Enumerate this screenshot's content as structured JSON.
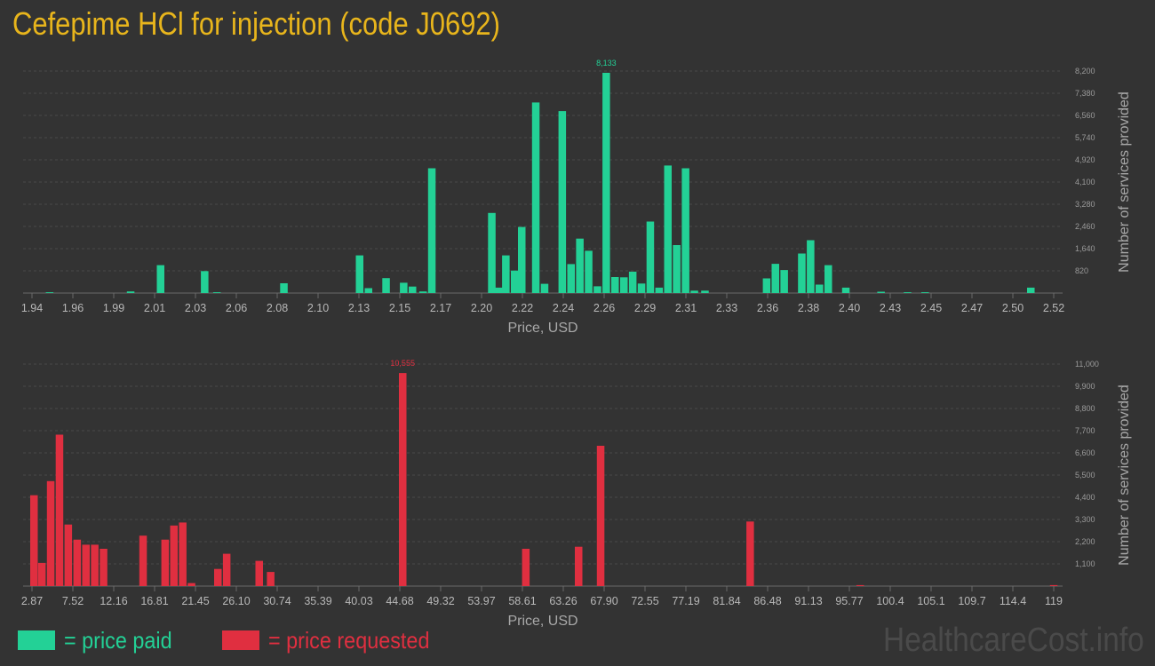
{
  "page_title": "Cefepime HCl for injection (code J0692)",
  "watermark": "HealthcareCost.info",
  "colors": {
    "paid": "#23d196",
    "requested": "#e02f40",
    "title": "#e8b51c",
    "background": "#333333"
  },
  "legend": [
    {
      "label": "= price paid",
      "color": "#23d196"
    },
    {
      "label": "= price requested",
      "color": "#e02f40"
    }
  ],
  "chart_data": [
    {
      "type": "bar",
      "name": "price-paid",
      "xlabel": "Price, USD",
      "ylabel": "Number of services provided",
      "xlim": [
        1.94,
        2.52
      ],
      "ylim": [
        0,
        8200
      ],
      "x_ticks": [
        "1.94",
        "1.96",
        "1.99",
        "2.01",
        "2.03",
        "2.06",
        "2.08",
        "2.10",
        "2.13",
        "2.15",
        "2.17",
        "2.20",
        "2.22",
        "2.24",
        "2.26",
        "2.29",
        "2.31",
        "2.33",
        "2.36",
        "2.38",
        "2.40",
        "2.43",
        "2.45",
        "2.47",
        "2.50",
        "2.52"
      ],
      "y_ticks": [
        "820",
        "1,640",
        "2,460",
        "3,280",
        "4,100",
        "4,920",
        "5,740",
        "6,560",
        "7,380",
        "8,200"
      ],
      "peak_label": "8,133",
      "x": [
        1.95,
        1.996,
        2.013,
        2.038,
        2.045,
        2.083,
        2.126,
        2.131,
        2.141,
        2.151,
        2.156,
        2.162,
        2.167,
        2.201,
        2.205,
        2.209,
        2.214,
        2.218,
        2.226,
        2.231,
        2.241,
        2.246,
        2.251,
        2.256,
        2.261,
        2.266,
        2.271,
        2.276,
        2.281,
        2.286,
        2.291,
        2.296,
        2.301,
        2.306,
        2.311,
        2.316,
        2.322,
        2.357,
        2.362,
        2.367,
        2.377,
        2.382,
        2.387,
        2.392,
        2.402,
        2.422,
        2.437,
        2.447,
        2.507
      ],
      "values": [
        30,
        60,
        1030,
        810,
        30,
        360,
        1390,
        180,
        550,
        380,
        240,
        60,
        4610,
        2960,
        200,
        1390,
        830,
        2440,
        7040,
        340,
        6720,
        1070,
        2010,
        1560,
        250,
        8133,
        590,
        580,
        790,
        350,
        2640,
        200,
        4710,
        1770,
        4610,
        90,
        90,
        540,
        1080,
        850,
        1460,
        1950,
        310,
        1030,
        200,
        50,
        30,
        30,
        200
      ]
    },
    {
      "type": "bar",
      "name": "price-requested",
      "xlabel": "Price, USD",
      "ylabel": "Number of services provided",
      "xlim": [
        2.87,
        119
      ],
      "ylim": [
        0,
        11000
      ],
      "x_ticks": [
        "2.87",
        "7.52",
        "12.16",
        "16.81",
        "21.45",
        "26.10",
        "30.74",
        "35.39",
        "40.03",
        "44.68",
        "49.32",
        "53.97",
        "58.61",
        "63.26",
        "67.90",
        "72.55",
        "77.19",
        "81.84",
        "86.48",
        "91.13",
        "95.77",
        "100.4",
        "105.1",
        "109.7",
        "114.4",
        "119"
      ],
      "y_ticks": [
        "1,100",
        "2,200",
        "3,300",
        "4,400",
        "5,500",
        "6,600",
        "7,700",
        "8,800",
        "9,900",
        "11,000"
      ],
      "peak_label": "10,555",
      "x": [
        3.1,
        4.0,
        5.0,
        6.0,
        7.0,
        8.0,
        9.0,
        10.0,
        11.0,
        12.0,
        15.5,
        18.0,
        19.0,
        20.0,
        21.0,
        24.0,
        25.0,
        28.7,
        30.0,
        45.0,
        59.0,
        65.0,
        67.5,
        84.5,
        97.0,
        119
      ],
      "values": [
        4500,
        1150,
        5200,
        7500,
        3050,
        2300,
        2050,
        2050,
        1850,
        0,
        2500,
        2300,
        3000,
        3150,
        150,
        850,
        1600,
        1250,
        700,
        10555,
        1850,
        1950,
        6950,
        3200,
        50,
        50
      ]
    }
  ]
}
